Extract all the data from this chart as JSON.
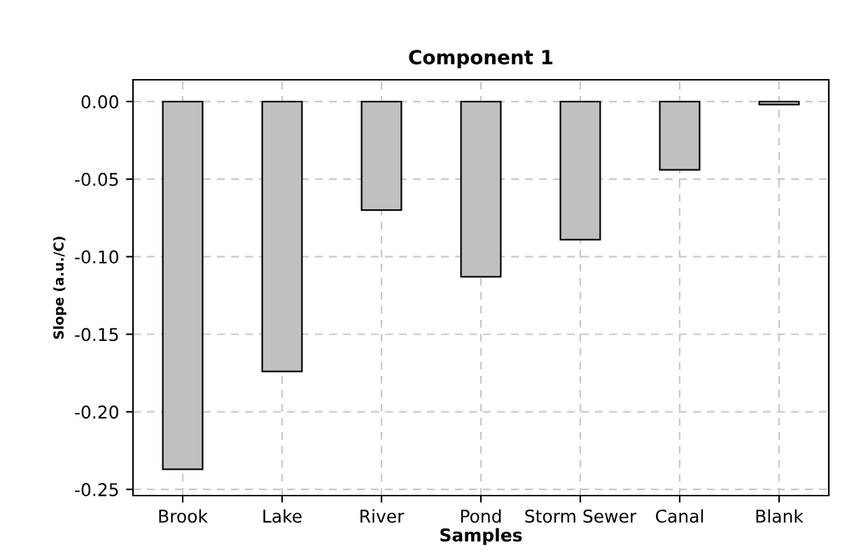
{
  "chart_data": {
    "type": "bar",
    "title": "Component 1",
    "xlabel": "Samples",
    "ylabel": "Slope (a.u./C)",
    "categories": [
      "Brook",
      "Lake",
      "River",
      "Pond",
      "Storm Sewer",
      "Canal",
      "Blank"
    ],
    "values": [
      -0.237,
      -0.174,
      -0.07,
      -0.113,
      -0.089,
      -0.044,
      -0.002
    ],
    "color": "#c0c0c0",
    "ylim": [
      -0.254,
      0.014
    ],
    "yticks": [
      {
        "value": 0,
        "label": "0.00"
      },
      {
        "value": -0.05,
        "label": "-0.05"
      },
      {
        "value": -0.1,
        "label": "-0.10"
      },
      {
        "value": -0.15,
        "label": "-0.15"
      },
      {
        "value": -0.2,
        "label": "-0.20"
      },
      {
        "value": -0.25,
        "label": "-0.25"
      }
    ],
    "grid": true
  }
}
